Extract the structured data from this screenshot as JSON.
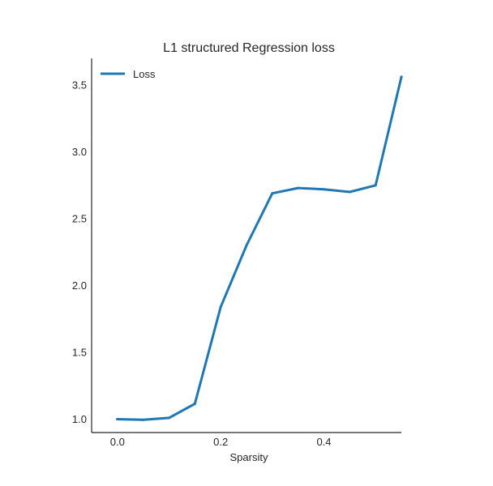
{
  "chart_data": {
    "type": "line",
    "title": "L1 structured Regression loss",
    "xlabel": "Sparsity",
    "ylabel": "",
    "xlim": [
      -0.05,
      0.55
    ],
    "ylim": [
      0.9,
      3.7
    ],
    "xticks": [
      0.0,
      0.2,
      0.4
    ],
    "xtick_labels": [
      "0.0",
      "0.2",
      "0.4"
    ],
    "yticks": [
      1.0,
      1.5,
      2.0,
      2.5,
      3.0,
      3.5
    ],
    "ytick_labels": [
      "1.0",
      "1.5",
      "2.0",
      "2.5",
      "3.0",
      "3.5"
    ],
    "grid": false,
    "legend_position": "top-left",
    "series": [
      {
        "name": "Loss",
        "color": "#1f77b4",
        "x": [
          0.0,
          0.05,
          0.1,
          0.15,
          0.2,
          0.25,
          0.3,
          0.35,
          0.4,
          0.45,
          0.5,
          0.55
        ],
        "y": [
          1.0,
          0.995,
          1.01,
          1.115,
          1.84,
          2.3,
          2.69,
          2.73,
          2.72,
          2.7,
          2.75,
          3.56
        ]
      }
    ]
  }
}
